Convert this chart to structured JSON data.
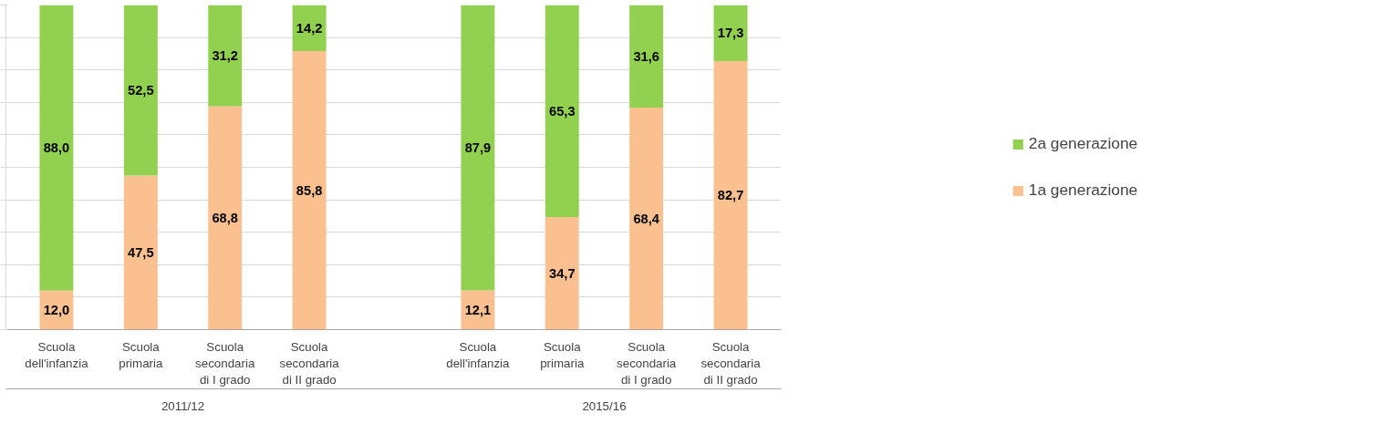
{
  "chart_data": {
    "type": "bar",
    "stacked": true,
    "categories": [
      "Scuola\ndell'infanzia",
      "Scuola\nprimaria",
      "Scuola\nsecondaria\ndi I grado",
      "Scuola\nsecondaria\ndi II grado",
      null,
      "Scuola\ndell'infanzia",
      "Scuola\nprimaria",
      "Scuola\nsecondaria\ndi I grado",
      "Scuola\nsecondaria\ndi II grado"
    ],
    "series": [
      {
        "name": "1a generazione",
        "color": "#fac090",
        "values": [
          12.0,
          47.5,
          68.8,
          85.8,
          null,
          12.1,
          34.7,
          68.4,
          82.7
        ],
        "value_labels": [
          "12,0",
          "47,5",
          "68,8",
          "85,8",
          null,
          "12,1",
          "34,7",
          "68,4",
          "82,7"
        ]
      },
      {
        "name": "2a generazione",
        "color": "#92d050",
        "values": [
          88.0,
          52.5,
          31.2,
          14.2,
          null,
          87.9,
          65.3,
          31.6,
          17.3
        ],
        "value_labels": [
          "88,0",
          "52,5",
          "31,2",
          "14,2",
          null,
          "87,9",
          "65,3",
          "31,6",
          "17,3"
        ]
      }
    ],
    "annotations": [
      "2011/12",
      "2015/16"
    ],
    "ylim": [
      0,
      100
    ],
    "yticks": [
      {
        "value": 0,
        "label": null
      },
      {
        "value": 10,
        "label": null
      },
      {
        "value": 20,
        "label": null
      },
      {
        "value": 30,
        "label": null
      },
      {
        "value": 40,
        "label": null
      },
      {
        "value": 50,
        "label": null
      },
      {
        "value": 60,
        "label": null
      },
      {
        "value": 70,
        "label": null
      },
      {
        "value": 80,
        "label": null
      },
      {
        "value": 90,
        "label": null
      },
      {
        "value": 100,
        "label": null
      }
    ],
    "tick_labels": "x",
    "grid": "y",
    "legend": "right"
  }
}
